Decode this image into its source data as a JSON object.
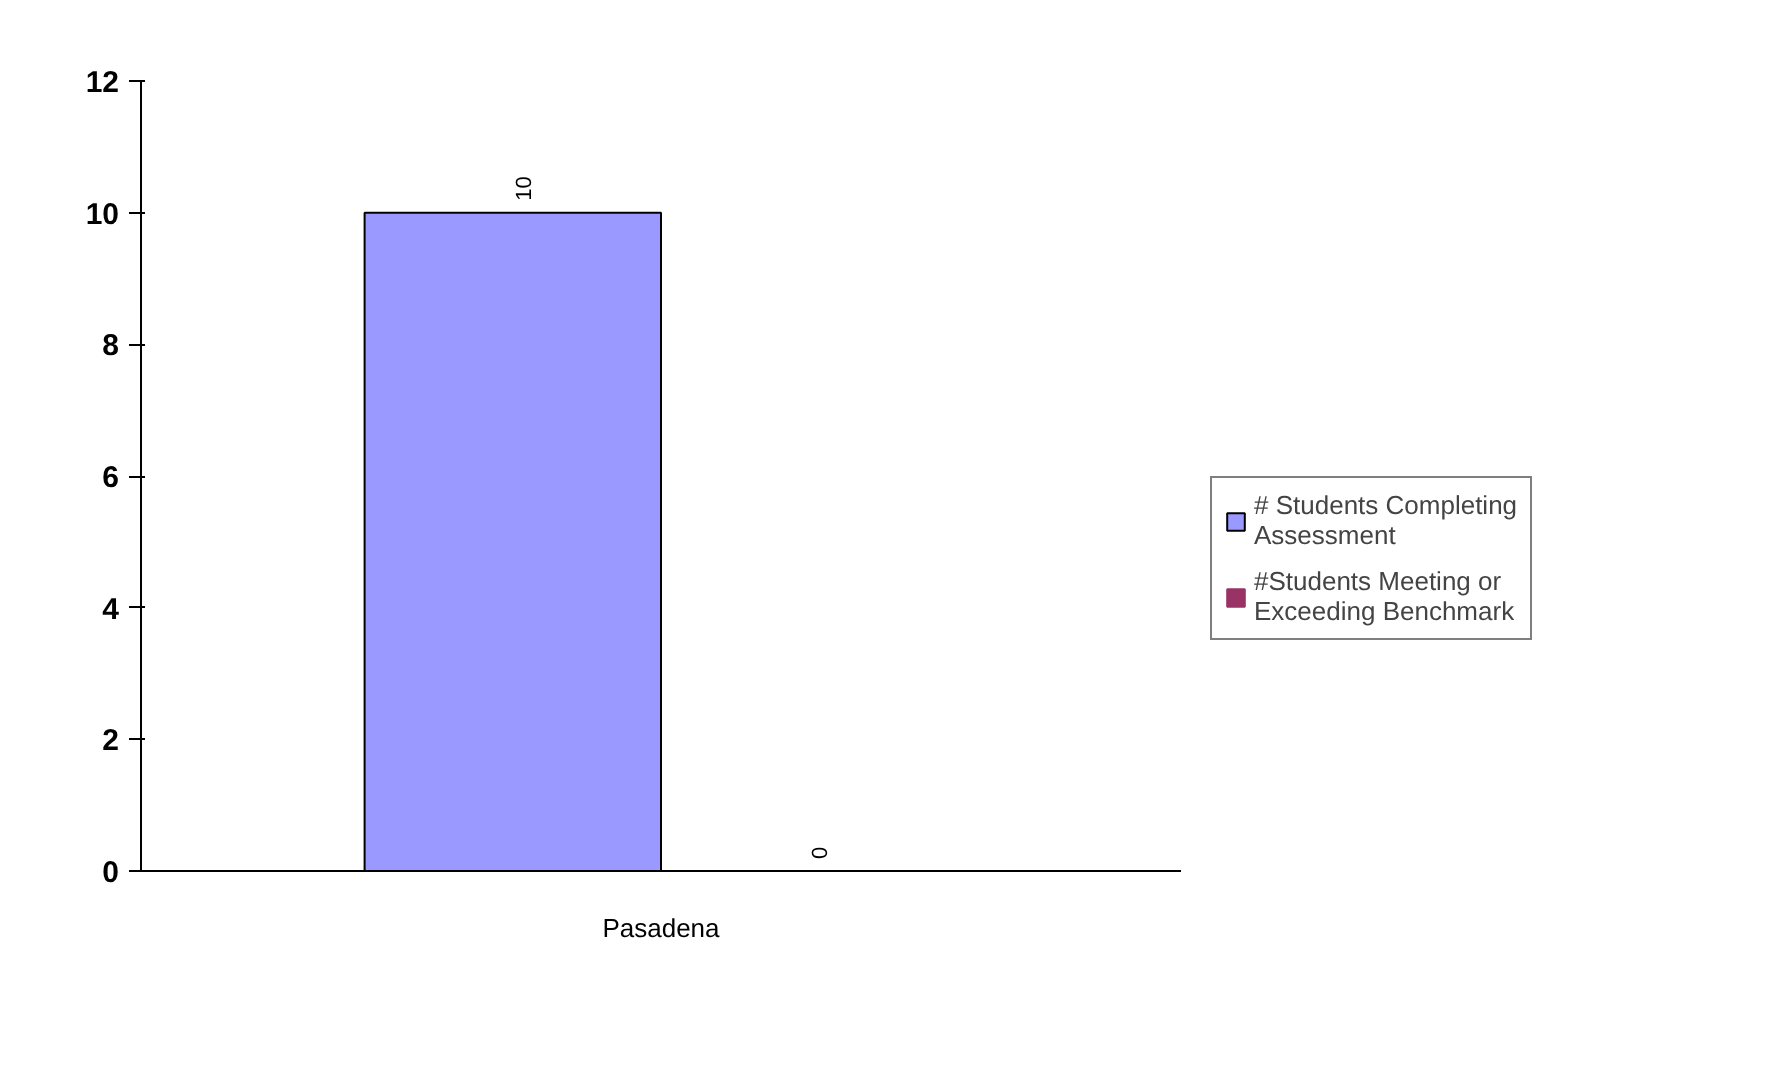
{
  "chart_data": {
    "type": "bar",
    "categories": [
      "Pasadena"
    ],
    "series": [
      {
        "name": "# Students Completing Assessment",
        "color": "#9999ff",
        "values": [
          10
        ]
      },
      {
        "name": "#Students Meeting or Exceeding Benchmark",
        "color": "#993366",
        "values": [
          0
        ]
      }
    ],
    "ylim": [
      0,
      12
    ],
    "yticks": [
      0,
      2,
      4,
      6,
      8,
      10,
      12
    ],
    "grid": false,
    "legend": "right",
    "data_labels": true
  }
}
